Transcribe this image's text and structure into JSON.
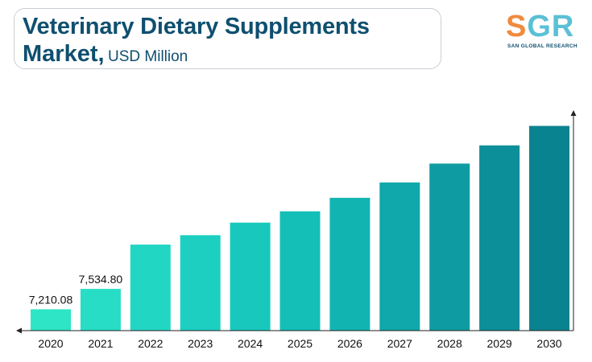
{
  "header": {
    "title_line1": "Veterinary Dietary Supplements",
    "title_line2": "Market,",
    "title_unit": "USD Million"
  },
  "logo": {
    "text_s": "S",
    "text_g": "G",
    "text_r": "R",
    "subtitle": "SAN GLOBAL RESEARCH",
    "colors": {
      "s": "#f08a3c",
      "gr": "#5ac0d6"
    }
  },
  "chart_data": {
    "type": "bar",
    "title": "Veterinary Dietary Supplements Market, USD Million",
    "categories": [
      "2020",
      "2021",
      "2022",
      "2023",
      "2024",
      "2025",
      "2026",
      "2027",
      "2028",
      "2029",
      "2030"
    ],
    "values": [
      7210.08,
      7534.8,
      8240,
      8390,
      8590,
      8770,
      8985,
      9230,
      9530,
      9820,
      10130
    ],
    "data_labels": [
      "7,210.08",
      "7,534.80",
      "",
      "",
      "",
      "",
      "",
      "",
      "",
      "",
      ""
    ],
    "ylim": [
      6870,
      10380
    ],
    "grid": false,
    "legend": "none",
    "colors": [
      "#2ee5c6",
      "#28ddc6",
      "#22d6c4",
      "#1ccfc1",
      "#18c8bd",
      "#14bfb8",
      "#12b4b2",
      "#10a8aa",
      "#0e9ca2",
      "#0c8f99",
      "#0a8390"
    ]
  }
}
